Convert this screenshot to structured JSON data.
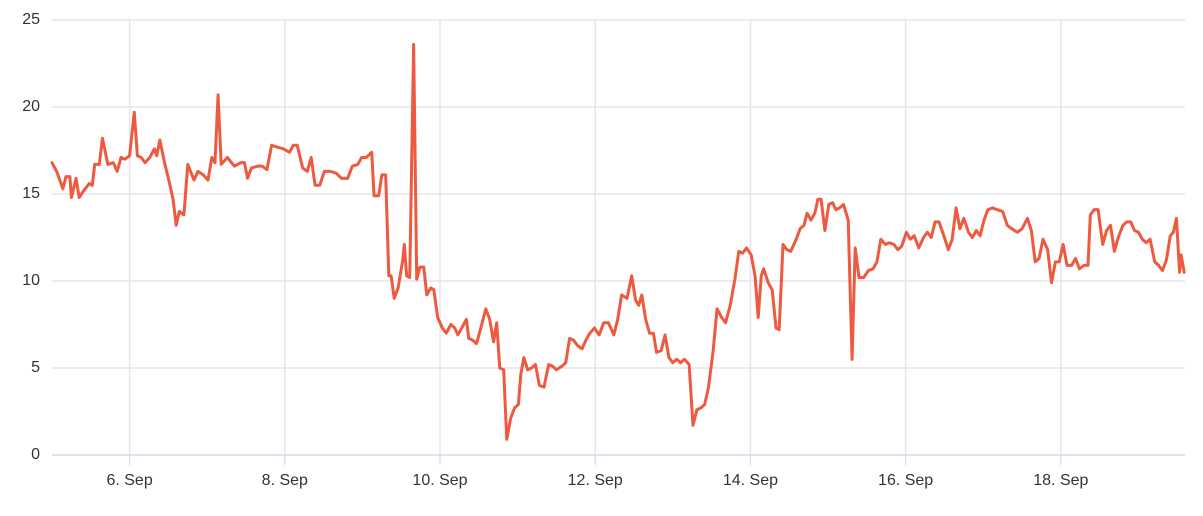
{
  "chart_data": {
    "type": "line",
    "x": [
      5.0,
      5.06,
      5.14,
      5.18,
      5.23,
      5.25,
      5.31,
      5.35,
      5.41,
      5.48,
      5.52,
      5.55,
      5.61,
      5.65,
      5.72,
      5.79,
      5.84,
      5.89,
      5.94,
      6.0,
      6.06,
      6.1,
      6.15,
      6.2,
      6.26,
      6.32,
      6.35,
      6.39,
      6.45,
      6.5,
      6.56,
      6.6,
      6.64,
      6.7,
      6.75,
      6.83,
      6.88,
      6.95,
      7.01,
      7.06,
      7.1,
      7.14,
      7.18,
      7.26,
      7.35,
      7.43,
      7.48,
      7.52,
      7.57,
      7.65,
      7.71,
      7.77,
      7.83,
      7.9,
      7.98,
      8.06,
      8.11,
      8.16,
      8.23,
      8.29,
      8.34,
      8.39,
      8.45,
      8.51,
      8.59,
      8.66,
      8.73,
      8.81,
      8.87,
      8.94,
      8.99,
      9.05,
      9.12,
      9.15,
      9.21,
      9.25,
      9.3,
      9.34,
      9.37,
      9.41,
      9.46,
      9.52,
      9.54,
      9.57,
      9.61,
      9.66,
      9.7,
      9.74,
      9.79,
      9.83,
      9.88,
      9.92,
      9.97,
      10.03,
      10.08,
      10.14,
      10.19,
      10.23,
      10.28,
      10.34,
      10.37,
      10.42,
      10.47,
      10.52,
      10.59,
      10.64,
      10.69,
      10.73,
      10.77,
      10.82,
      10.86,
      10.91,
      10.96,
      11.01,
      11.04,
      11.08,
      11.13,
      11.18,
      11.23,
      11.28,
      11.34,
      11.4,
      11.45,
      11.5,
      11.57,
      11.62,
      11.67,
      11.72,
      11.77,
      11.83,
      11.88,
      11.93,
      11.99,
      12.05,
      12.11,
      12.17,
      12.24,
      12.29,
      12.34,
      12.41,
      12.47,
      12.52,
      12.56,
      12.6,
      12.65,
      12.7,
      12.75,
      12.79,
      12.85,
      12.9,
      12.95,
      13.0,
      13.05,
      13.1,
      13.15,
      13.21,
      13.26,
      13.31,
      13.36,
      13.41,
      13.46,
      13.52,
      13.57,
      13.63,
      13.68,
      13.74,
      13.8,
      13.85,
      13.9,
      13.95,
      14.01,
      14.06,
      14.1,
      14.14,
      14.17,
      14.23,
      14.28,
      14.33,
      14.37,
      14.42,
      14.47,
      14.52,
      14.59,
      14.64,
      14.69,
      14.73,
      14.78,
      14.83,
      14.87,
      14.91,
      14.96,
      15.01,
      15.06,
      15.1,
      15.15,
      15.2,
      15.26,
      15.31,
      15.35,
      15.4,
      15.46,
      15.52,
      15.58,
      15.63,
      15.68,
      15.74,
      15.79,
      15.85,
      15.9,
      15.95,
      16.01,
      16.06,
      16.11,
      16.17,
      16.23,
      16.28,
      16.33,
      16.38,
      16.43,
      16.5,
      16.55,
      16.6,
      16.65,
      16.7,
      16.75,
      16.81,
      16.86,
      16.91,
      16.96,
      17.01,
      17.06,
      17.12,
      17.18,
      17.25,
      17.31,
      17.37,
      17.44,
      17.5,
      17.57,
      17.62,
      17.67,
      17.72,
      17.77,
      17.83,
      17.88,
      17.93,
      17.98,
      18.03,
      18.08,
      18.14,
      18.19,
      18.24,
      18.3,
      18.35,
      18.38,
      18.43,
      18.48,
      18.54,
      18.59,
      18.64,
      18.69,
      18.74,
      18.8,
      18.85,
      18.9,
      18.95,
      19.0,
      19.05,
      19.1,
      19.15,
      19.21,
      19.26,
      19.31,
      19.36,
      19.41,
      19.45,
      19.49,
      19.53,
      19.55,
      19.59
    ],
    "series": [
      {
        "color": "#ee5a40",
        "values": [
          16.8,
          16.3,
          15.3,
          16.0,
          16.0,
          14.8,
          15.9,
          14.8,
          15.2,
          15.6,
          15.5,
          16.7,
          16.7,
          18.2,
          16.7,
          16.8,
          16.3,
          17.1,
          17.0,
          17.2,
          19.7,
          17.2,
          17.1,
          16.8,
          17.1,
          17.6,
          17.2,
          18.1,
          16.8,
          15.9,
          14.7,
          13.2,
          14.0,
          13.8,
          16.7,
          15.8,
          16.3,
          16.1,
          15.8,
          17.1,
          16.8,
          20.7,
          16.7,
          17.1,
          16.6,
          16.8,
          16.8,
          15.9,
          16.5,
          16.6,
          16.6,
          16.4,
          17.8,
          17.7,
          17.6,
          17.4,
          17.8,
          17.8,
          16.5,
          16.3,
          17.1,
          15.5,
          15.5,
          16.3,
          16.3,
          16.2,
          15.9,
          15.9,
          16.6,
          16.7,
          17.1,
          17.1,
          17.4,
          14.9,
          14.9,
          16.1,
          16.1,
          10.3,
          10.3,
          9.0,
          9.6,
          11.2,
          12.1,
          10.3,
          10.2,
          23.6,
          10.1,
          10.8,
          10.8,
          9.2,
          9.6,
          9.5,
          7.9,
          7.3,
          7.0,
          7.5,
          7.3,
          6.9,
          7.3,
          7.8,
          6.7,
          6.6,
          6.4,
          7.2,
          8.4,
          7.8,
          6.5,
          7.6,
          5.0,
          4.9,
          0.9,
          2.1,
          2.7,
          2.9,
          4.6,
          5.6,
          4.9,
          5.0,
          5.2,
          4.0,
          3.9,
          5.2,
          5.1,
          4.9,
          5.1,
          5.3,
          6.7,
          6.6,
          6.3,
          6.1,
          6.6,
          7.0,
          7.3,
          6.9,
          7.6,
          7.6,
          6.9,
          7.8,
          9.2,
          9.0,
          10.3,
          8.9,
          8.6,
          9.2,
          7.8,
          7.0,
          7.0,
          5.9,
          6.0,
          6.9,
          5.6,
          5.3,
          5.5,
          5.3,
          5.5,
          5.2,
          1.7,
          2.6,
          2.7,
          2.9,
          3.9,
          6.0,
          8.4,
          7.9,
          7.6,
          8.6,
          10.1,
          11.7,
          11.6,
          11.9,
          11.5,
          10.3,
          7.9,
          10.3,
          10.7,
          9.9,
          9.5,
          7.3,
          7.2,
          12.1,
          11.8,
          11.7,
          12.4,
          13.0,
          13.2,
          13.9,
          13.5,
          13.9,
          14.7,
          14.7,
          12.9,
          14.4,
          14.5,
          14.1,
          14.2,
          14.4,
          13.5,
          5.5,
          11.9,
          10.2,
          10.2,
          10.6,
          10.7,
          11.1,
          12.4,
          12.1,
          12.2,
          12.1,
          11.8,
          12.0,
          12.8,
          12.4,
          12.6,
          11.9,
          12.5,
          12.8,
          12.5,
          13.4,
          13.4,
          12.5,
          11.8,
          12.4,
          14.2,
          13.0,
          13.6,
          12.8,
          12.5,
          12.9,
          12.6,
          13.5,
          14.1,
          14.2,
          14.1,
          14.0,
          13.2,
          13.0,
          12.8,
          13.0,
          13.6,
          12.9,
          11.1,
          11.3,
          12.4,
          11.8,
          9.9,
          11.1,
          11.1,
          12.1,
          10.9,
          10.9,
          11.3,
          10.7,
          10.9,
          10.9,
          13.8,
          14.1,
          14.1,
          12.1,
          12.9,
          13.2,
          11.7,
          12.5,
          13.2,
          13.4,
          13.4,
          12.9,
          12.8,
          12.4,
          12.2,
          12.4,
          11.1,
          10.9,
          10.6,
          11.2,
          12.6,
          12.8,
          13.6,
          10.5,
          11.5,
          10.5
        ]
      }
    ],
    "xlim": [
      5,
      19.6
    ],
    "xticks": [
      {
        "value": 6,
        "label": "6. Sep"
      },
      {
        "value": 8,
        "label": "8. Sep"
      },
      {
        "value": 10,
        "label": "10. Sep"
      },
      {
        "value": 12,
        "label": "12. Sep"
      },
      {
        "value": 14,
        "label": "14. Sep"
      },
      {
        "value": 16,
        "label": "16. Sep"
      },
      {
        "value": 18,
        "label": "18. Sep"
      }
    ],
    "ylim": [
      0,
      25
    ],
    "yticks": [
      0,
      5,
      10,
      15,
      20,
      25
    ],
    "grid": true
  }
}
